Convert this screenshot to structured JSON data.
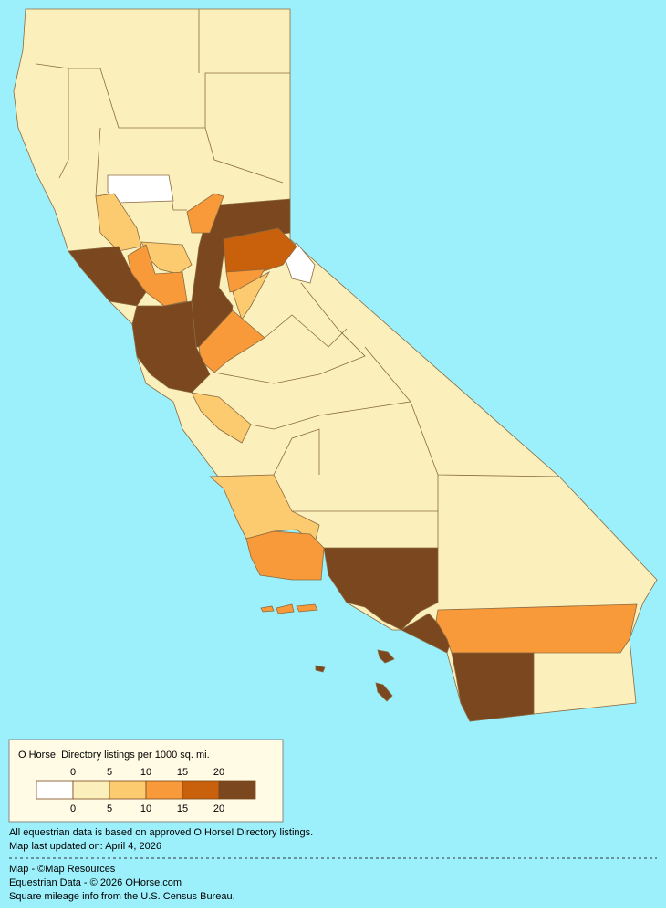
{
  "legend": {
    "title": "O Horse! Directory listings per 1000 sq. mi.",
    "breaks": [
      "0",
      "5",
      "10",
      "15",
      "20"
    ],
    "colors": [
      "#ffffff",
      "#fbf0bb",
      "#fccb6f",
      "#f99a3a",
      "#c8600c",
      "#7b471e"
    ]
  },
  "notes": [
    "All equestrian data is based on approved O Horse! Directory listings.",
    "Map last updated on: April 4, 2026"
  ],
  "credits": [
    "Map - ©Map Resources",
    "Equestrian Data - © 2026 OHorse.com",
    "Square mileage info from the U.S. Census Bureau."
  ],
  "background": "#9cf0fb"
}
